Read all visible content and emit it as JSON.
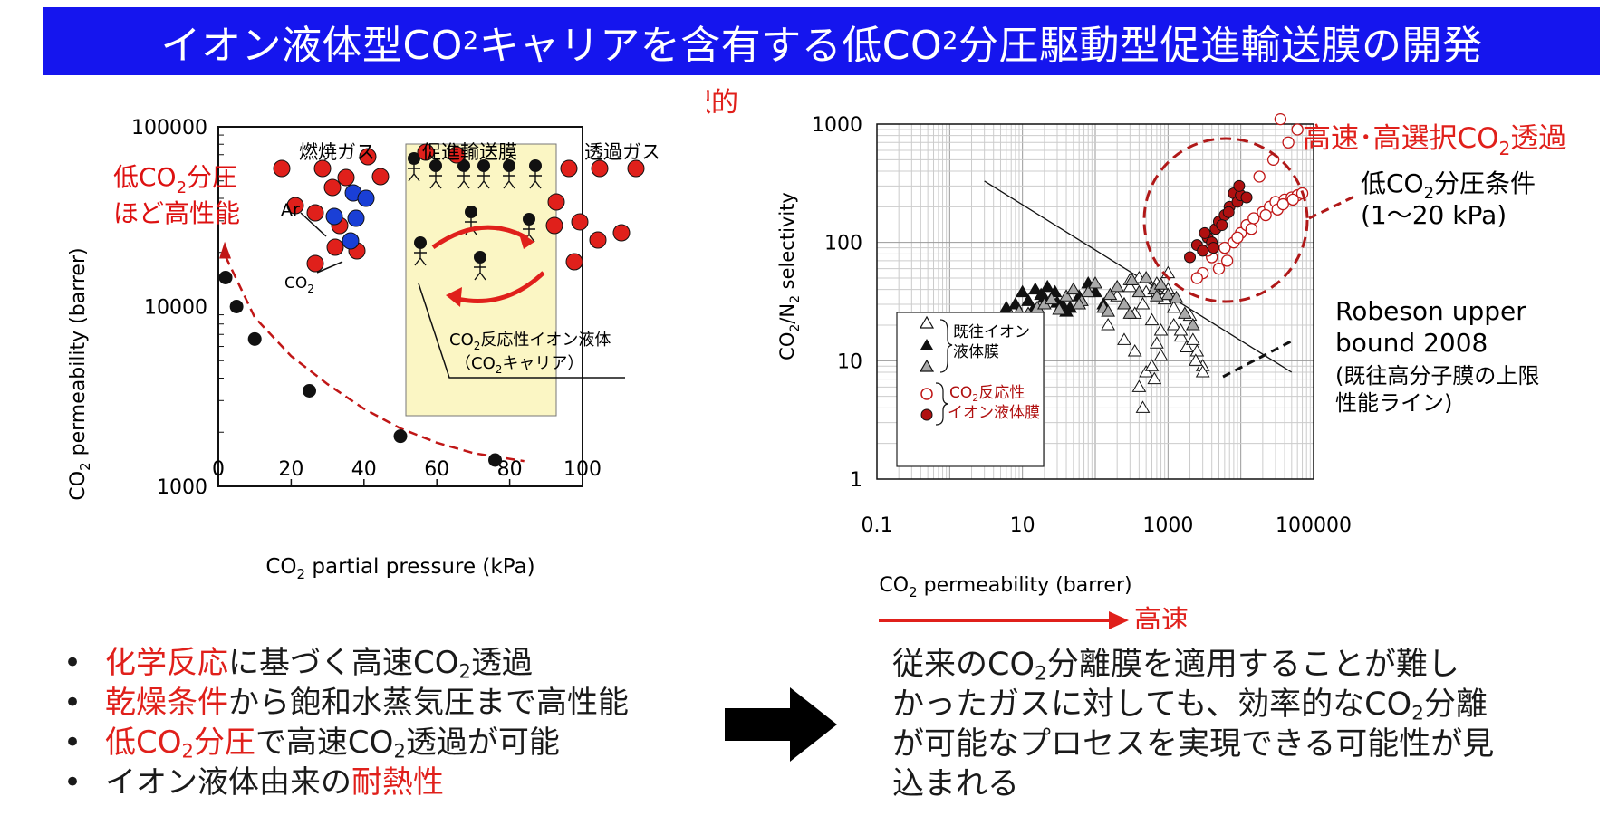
{
  "header": {
    "title_a": "イオン液体型CO",
    "title_sub": "2",
    "title_b": "キャリアを含有する低CO",
    "title_sub2": "2",
    "title_c": "分圧駆動型促進輸送膜の開発"
  },
  "colors": {
    "accent_red": "#cc1010",
    "title_blue": "#1515ee",
    "carrier_red": "#e0201b",
    "argon_blue": "#1a3fd6"
  },
  "left_chart": {
    "ylabel_a": "CO",
    "ylabel_sub": "2",
    "ylabel_b": " permeability (barrer)",
    "xlabel_a": "CO",
    "xlabel_sub": "2",
    "xlabel_b": " partial pressure (kPa)",
    "annotation_line1_a": "低CO",
    "annotation_line1_sub": "2",
    "annotation_line1_b": "分圧",
    "annotation_line2": "ほど高性能",
    "xticks": [
      "0",
      "20",
      "40",
      "60",
      "80",
      "100"
    ],
    "yticks": [
      "1000",
      "10000",
      "100000"
    ],
    "inset": {
      "feed_label": "燃焼ガス",
      "membrane_label": "促進輸送膜",
      "permeate_label": "透過ガス",
      "ar_label": "Ar",
      "co2_label_a": "CO",
      "co2_label_sub": "2",
      "carrier_line1_a": "CO",
      "carrier_line1_sub": "2",
      "carrier_line1_b": "反応性イオン液体",
      "carrier_line2_a": "（CO",
      "carrier_line2_sub": "2",
      "carrier_line2_b": "キャリア）"
    }
  },
  "right_chart": {
    "ylabel": "CO2/N2 selectivity",
    "xlabel_a": "CO",
    "xlabel_sub": "2",
    "xlabel_b": " permeability (barrer)",
    "xticks": [
      "0.1",
      "10",
      "1000",
      "100000"
    ],
    "yticks": [
      "1",
      "10",
      "100",
      "1000"
    ],
    "top_arrow_label": "高選択的",
    "right_arrow_label": "高速",
    "circle_label_a": "高速･高選択CO",
    "circle_label_sub": "2",
    "circle_label_b": "透過",
    "condition_line1_a": "低CO",
    "condition_line1_sub": "2",
    "condition_line1_b": "分圧条件",
    "condition_line2": "(1～20 kPa)",
    "robeson_line1": "Robeson upper",
    "robeson_line2": "bound 2008",
    "robeson_note1": "(既往高分子膜の上限",
    "robeson_note2": "性能ライン)",
    "legend": {
      "existing_line1": "既往イオン",
      "existing_line2": "液体膜",
      "reactive_line1_a": "CO",
      "reactive_line1_sub": "2",
      "reactive_line1_b": "反応性",
      "reactive_line2": "イオン液体膜"
    }
  },
  "chart_data": [
    {
      "type": "scatter",
      "xlabel": "CO2 partial pressure (kPa)",
      "ylabel": "CO2 permeability (barrer)",
      "xlim": [
        0,
        100
      ],
      "ylim": [
        1000,
        100000
      ],
      "yscale": "log",
      "series": [
        {
          "x": [
            2,
            5,
            10,
            25,
            50,
            76
          ],
          "values": [
            14500,
            10000,
            6600,
            3400,
            1900,
            1400
          ]
        }
      ],
      "trend_x": [
        2,
        10,
        20,
        30,
        40,
        50,
        60,
        70,
        84
      ],
      "trend_y": [
        19000,
        8700,
        5300,
        3700,
        2700,
        2100,
        1750,
        1530,
        1380
      ]
    },
    {
      "type": "scatter",
      "xlabel": "CO2 permeability (barrer)",
      "ylabel": "CO2/N2 selectivity",
      "xscale": "log",
      "yscale": "log",
      "xlim": [
        0.1,
        100000
      ],
      "ylim": [
        1,
        1000
      ],
      "robeson_line": {
        "x": [
          3,
          50000
        ],
        "y": [
          330,
          8
        ]
      },
      "series": [
        {
          "legend": "既往イオン液体膜 (open)",
          "marker": "open-triangle",
          "x": [
            150,
            200,
            250,
            300,
            350,
            400,
            450,
            500,
            600,
            700,
            800,
            900,
            1000,
            1200,
            1500,
            2000,
            2500,
            3000,
            250,
            350,
            500,
            700,
            900,
            1200,
            1800,
            2400,
            300,
            600,
            1000,
            1500,
            2200,
            3000,
            400,
            800,
            450,
            650
          ],
          "values": [
            20,
            35,
            15,
            42,
            25,
            50,
            30,
            38,
            22,
            45,
            18,
            33,
            55,
            28,
            16,
            24,
            12,
            9,
            30,
            12,
            8,
            14,
            36,
            20,
            13,
            10,
            48,
            9,
            40,
            18,
            15,
            8,
            6,
            11,
            4,
            7
          ]
        },
        {
          "legend": "既往イオン液体膜 (filled)",
          "marker": "filled-triangle",
          "x": [
            6,
            8,
            10,
            12,
            15,
            18,
            22,
            28,
            35,
            45,
            60,
            80,
            100,
            130,
            9,
            14,
            20,
            30,
            40
          ],
          "values": [
            28,
            30,
            38,
            32,
            40,
            36,
            42,
            38,
            30,
            28,
            35,
            45,
            38,
            30,
            25,
            27,
            34,
            31,
            26
          ]
        },
        {
          "legend": "既往イオン液体膜 (grey)",
          "marker": "grey-triangle",
          "x": [
            5,
            7,
            9,
            12,
            16,
            20,
            25,
            32,
            40,
            50,
            65,
            80,
            100,
            130,
            160,
            200,
            250,
            320,
            400,
            500,
            650,
            800,
            1000,
            1300,
            1700,
            2200,
            60,
            150,
            300,
            700
          ],
          "values": [
            22,
            24,
            26,
            25,
            28,
            30,
            33,
            27,
            35,
            40,
            32,
            38,
            45,
            28,
            36,
            42,
            30,
            48,
            38,
            50,
            40,
            44,
            36,
            34,
            25,
            20,
            30,
            26,
            25,
            35
          ]
        },
        {
          "legend": "CO2反応性イオン液体膜 (open)",
          "marker": "open-circle",
          "x": [
            3000,
            4000,
            5000,
            6000,
            8000,
            10000,
            12000,
            15000,
            20000,
            25000,
            30000,
            40000,
            50000,
            60000,
            70000,
            18000,
            28000,
            45000,
            60000,
            35000,
            9000,
            14000,
            22000,
            32000,
            38000,
            52000,
            2500,
            3500,
            6500
          ],
          "values": [
            55,
            75,
            60,
            90,
            100,
            120,
            140,
            160,
            180,
            200,
            220,
            230,
            240,
            250,
            260,
            360,
            500,
            700,
            900,
            1100,
            110,
            130,
            170,
            190,
            210,
            230,
            50,
            85,
            70
          ]
        },
        {
          "legend": "CO2反応性イオン液体膜 (filled)",
          "marker": "filled-circle",
          "x": [
            2000,
            2500,
            3000,
            3500,
            4000,
            4500,
            5000,
            6000,
            7000,
            8000,
            9000,
            10000,
            12000,
            4200,
            5500,
            3200,
            6800,
            9500
          ],
          "values": [
            75,
            95,
            85,
            110,
            100,
            130,
            150,
            170,
            200,
            260,
            220,
            250,
            240,
            90,
            140,
            120,
            180,
            300
          ]
        }
      ]
    }
  ],
  "bullets": [
    {
      "red_a": "化学反応",
      "black_a": "に基づく高速CO",
      "sub": "2",
      "black_b": "透過"
    },
    {
      "red_a": "乾燥条件",
      "black_a": "から飽和水蒸気圧まで高性能"
    },
    {
      "red_a": "低CO",
      "red_sub": "2",
      "red_b": "分圧",
      "black_a": "で高速CO",
      "sub": "2",
      "black_b": "透過が可能"
    },
    {
      "black_a": "イオン液体由来の",
      "red_a": "耐熱性"
    }
  ],
  "conclusion": {
    "line1_a": "従来のCO",
    "line1_sub": "2",
    "line1_b": "分離膜を適用することが難し",
    "line2_a": "かったガスに対しても、効率的なCO",
    "line2_sub": "2",
    "line2_b": "分離",
    "line3": "が可能なプロセスを実現できる可能性が見",
    "line4": "込まれる"
  }
}
